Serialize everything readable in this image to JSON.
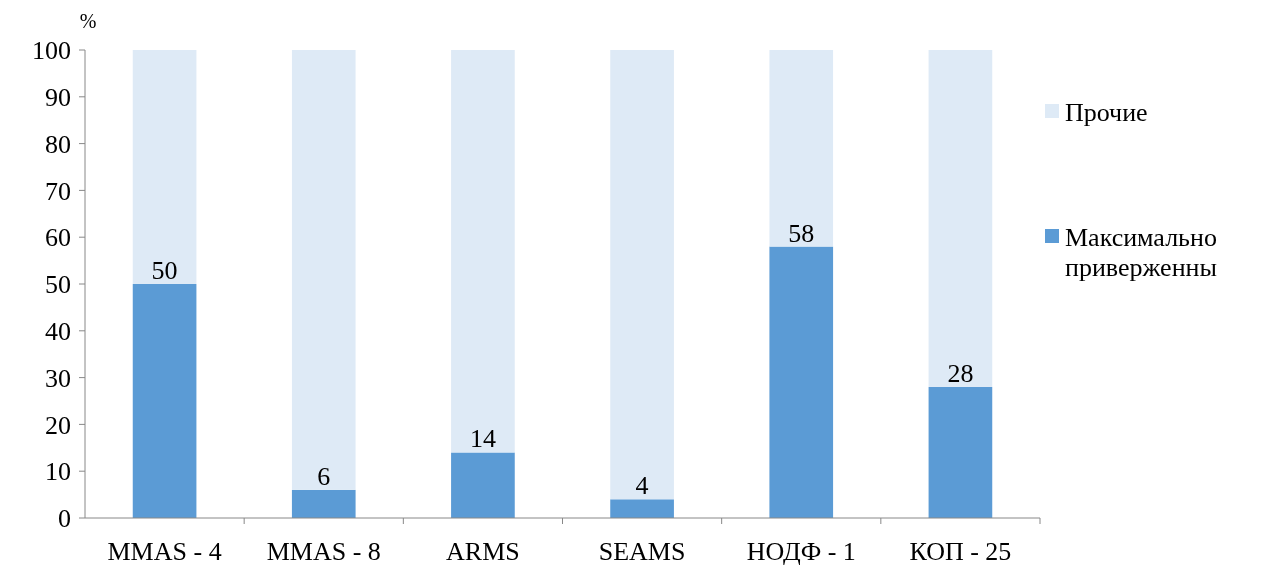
{
  "chart_data": {
    "type": "bar",
    "stacked": true,
    "ylabel": "%",
    "categories": [
      "MMAS - 4",
      "MMAS - 8",
      "ARMS",
      "SEAMS",
      "НОДФ - 1",
      "КОП - 25"
    ],
    "series": [
      {
        "name": "Максимально приверженны",
        "color": "#5b9bd5",
        "values": [
          50,
          6,
          14,
          4,
          58,
          28
        ],
        "value_labels": [
          "50",
          "6",
          "14",
          "4",
          "58",
          "28"
        ]
      },
      {
        "name": "Прочие",
        "color": "#deeaf6",
        "values": [
          50,
          94,
          86,
          96,
          42,
          72
        ]
      }
    ],
    "ylim": [
      0,
      100
    ],
    "yticks": [
      0,
      10,
      20,
      30,
      40,
      50,
      60,
      70,
      80,
      90,
      100
    ],
    "legend": "right"
  }
}
